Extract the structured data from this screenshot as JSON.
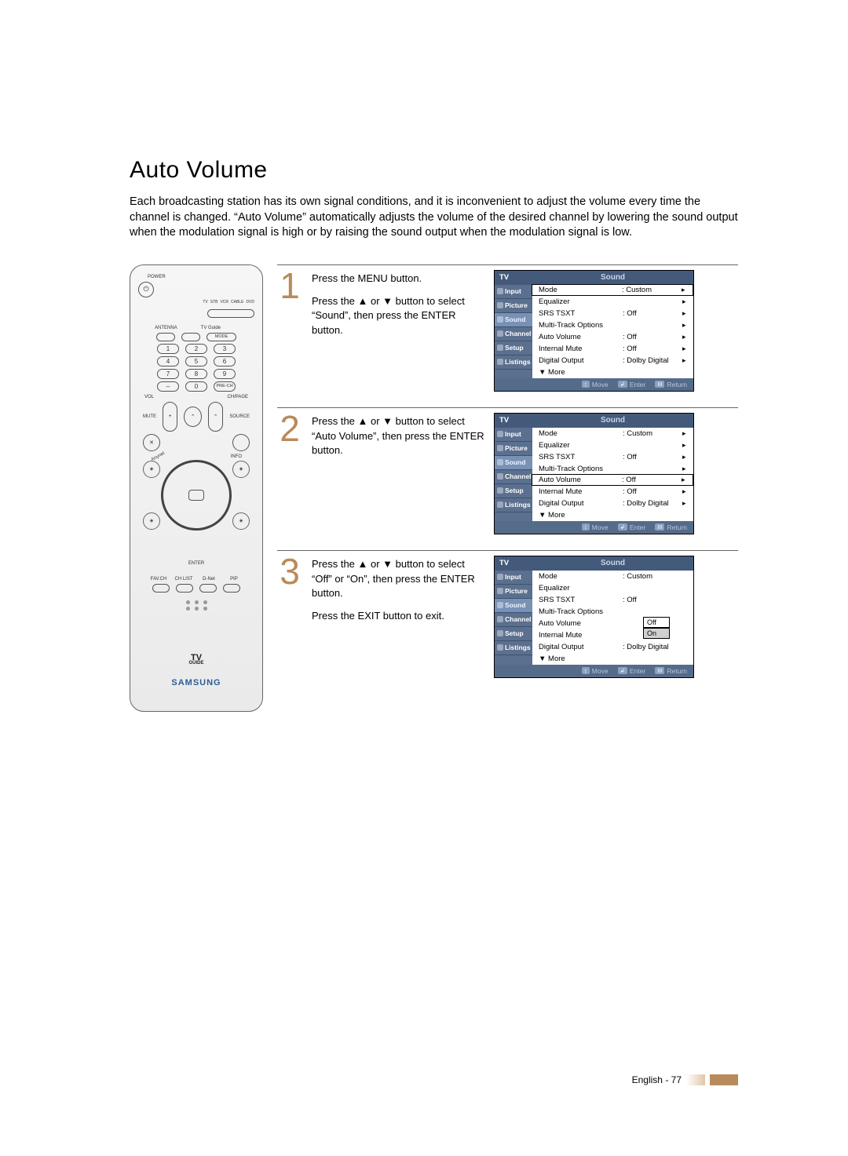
{
  "page": {
    "title": "Auto Volume",
    "intro": "Each broadcasting station has its own signal conditions, and it is inconvenient to adjust the volume every time the channel is changed. “Auto Volume” automatically adjusts the volume of the desired channel by lowering the sound output when the modulation signal is high or by raising the sound output when the modulation signal is low.",
    "footer": "English - 77"
  },
  "remote": {
    "power_label": "POWER",
    "mode_row": [
      "TV",
      "STB",
      "VCR",
      "CABLE",
      "DVD"
    ],
    "row2": [
      "ANTENNA",
      "TV Guide",
      "MODE"
    ],
    "numbers": [
      [
        "1",
        "2",
        "3"
      ],
      [
        "4",
        "5",
        "6"
      ],
      [
        "7",
        "8",
        "9"
      ],
      [
        "–",
        "0",
        "PRE-CH"
      ]
    ],
    "vol_label": "VOL",
    "ch_label": "CH/PAGE",
    "mute": "MUTE",
    "source": "SOURCE",
    "info": "INFO",
    "enter": "ENTER",
    "bottom_row": [
      "FAV.CH",
      "CH LIST",
      "D-Net",
      "PIP"
    ],
    "tvguide": "TV",
    "tvguide_sub": "GUIDE",
    "brand": "SAMSUNG"
  },
  "steps": [
    {
      "num": "1",
      "text": "Press the MENU button.\nPress the ▲ or ▼ button to select “Sound”, then press the ENTER button.",
      "osd": {
        "title": "Sound",
        "boxed_row_index": 0,
        "rows": [
          {
            "label": "Mode",
            "val": ": Custom",
            "arrow": "▸"
          },
          {
            "label": "Equalizer",
            "val": "",
            "arrow": "▸"
          },
          {
            "label": "SRS TSXT",
            "val": ": Off",
            "arrow": "▸"
          },
          {
            "label": "Multi-Track Options",
            "val": "",
            "arrow": "▸"
          },
          {
            "label": "Auto Volume",
            "val": ": Off",
            "arrow": "▸"
          },
          {
            "label": "Internal Mute",
            "val": ": Off",
            "arrow": "▸"
          },
          {
            "label": "Digital Output",
            "val": ": Dolby Digital",
            "arrow": "▸"
          },
          {
            "label": "▼ More",
            "val": "",
            "arrow": ""
          }
        ]
      }
    },
    {
      "num": "2",
      "text": "Press the ▲ or ▼ button to select “Auto Volume”, then press the ENTER button.",
      "osd": {
        "title": "Sound",
        "boxed_row_index": 4,
        "rows": [
          {
            "label": "Mode",
            "val": ": Custom",
            "arrow": "▸"
          },
          {
            "label": "Equalizer",
            "val": "",
            "arrow": "▸"
          },
          {
            "label": "SRS TSXT",
            "val": ": Off",
            "arrow": "▸"
          },
          {
            "label": "Multi-Track Options",
            "val": "",
            "arrow": "▸"
          },
          {
            "label": "Auto Volume",
            "val": ": Off",
            "arrow": "▸"
          },
          {
            "label": "Internal Mute",
            "val": ": Off",
            "arrow": "▸"
          },
          {
            "label": "Digital Output",
            "val": ": Dolby Digital",
            "arrow": "▸"
          },
          {
            "label": "▼ More",
            "val": "",
            "arrow": ""
          }
        ]
      }
    },
    {
      "num": "3",
      "text": "Press the ▲ or ▼ button to select “Off” or “On”, then press the ENTER button.",
      "text2": "Press the EXIT button to exit.",
      "osd": {
        "title": "Sound",
        "boxed_row_index": -1,
        "options": [
          "Off",
          "On"
        ],
        "rows": [
          {
            "label": "Mode",
            "val": ": Custom",
            "arrow": ""
          },
          {
            "label": "Equalizer",
            "val": "",
            "arrow": ""
          },
          {
            "label": "SRS TSXT",
            "val": ": Off",
            "arrow": ""
          },
          {
            "label": "Multi-Track Options",
            "val": "",
            "arrow": ""
          },
          {
            "label": "Auto Volume",
            "val": "",
            "arrow": ""
          },
          {
            "label": "Internal Mute",
            "val": "",
            "arrow": ""
          },
          {
            "label": "Digital Output",
            "val": ": Dolby Digital",
            "arrow": ""
          },
          {
            "label": "▼ More",
            "val": "",
            "arrow": ""
          }
        ]
      }
    }
  ],
  "osd_common": {
    "tv": "TV",
    "tabs": [
      "Input",
      "Picture",
      "Sound",
      "Channel",
      "Setup",
      "Listings"
    ],
    "active_tab": 2,
    "hints": [
      {
        "key": "↕",
        "label": "Move"
      },
      {
        "key": "↲",
        "label": "Enter"
      },
      {
        "key": "III",
        "label": "Return"
      }
    ]
  },
  "colors": {
    "step_num": "#b98b5a",
    "osd_header": "#445a7a",
    "osd_tabs": "#5b6f8e",
    "osd_footer": "#556b8a"
  }
}
